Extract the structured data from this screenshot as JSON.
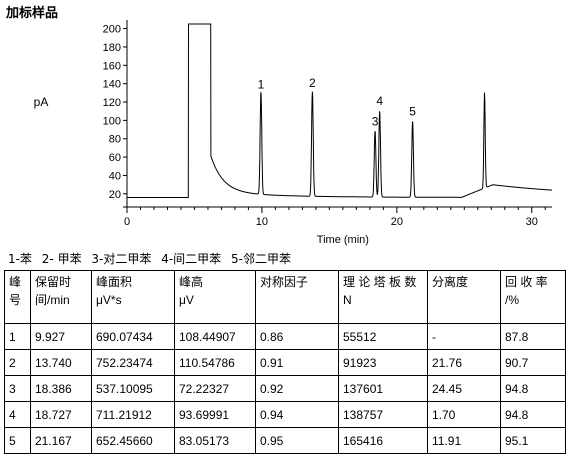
{
  "title": "加标样品",
  "chart_data": {
    "type": "line",
    "ylabel": "pA",
    "xlabel": "Time (min)",
    "xlim": [
      0,
      31.5
    ],
    "ylim": [
      10,
      205
    ],
    "xticks": [
      0,
      10,
      20,
      30
    ],
    "yticks": [
      20,
      40,
      60,
      80,
      100,
      120,
      140,
      160,
      180,
      200
    ],
    "baseline": 16,
    "solvent_peak": {
      "start": 4.55,
      "end": 6.2,
      "top": 205
    },
    "peaks": [
      {
        "label": "1",
        "rt": 9.927,
        "height": 128
      },
      {
        "label": "2",
        "rt": 13.74,
        "height": 130
      },
      {
        "label": "3",
        "rt": 18.386,
        "height": 88
      },
      {
        "label": "4",
        "rt": 18.727,
        "height": 110
      },
      {
        "label": "5",
        "rt": 21.167,
        "height": 99
      }
    ],
    "extra_peaks": [
      {
        "rt": 26.5,
        "height": 120
      }
    ]
  },
  "legend": [
    "1-苯",
    "2- 甲苯",
    "3-对二甲苯",
    "4-间二甲苯",
    "5-邻二甲苯"
  ],
  "table": {
    "headers": [
      [
        "峰",
        "号"
      ],
      [
        "保留时",
        "间/min"
      ],
      [
        "峰面积",
        "μV*s"
      ],
      [
        "峰高",
        "μV"
      ],
      [
        "对称因子"
      ],
      [
        "理 论 塔 板 数",
        "N"
      ],
      [
        "分离度"
      ],
      [
        "回 收 率",
        "/%"
      ]
    ],
    "rows": [
      [
        "1",
        "9.927",
        "690.07434",
        "108.44907",
        "0.86",
        "55512",
        "-",
        "87.8"
      ],
      [
        "2",
        "13.740",
        "752.23474",
        "110.54786",
        "0.91",
        "91923",
        "21.76",
        "90.7"
      ],
      [
        "3",
        "18.386",
        "537.10095",
        "72.22327",
        "0.92",
        "137601",
        "24.45",
        "94.8"
      ],
      [
        "4",
        "18.727",
        "711.21912",
        "93.69991",
        "0.94",
        "138757",
        "1.70",
        "94.8"
      ],
      [
        "5",
        "21.167",
        "652.45660",
        "83.05173",
        "0.95",
        "165416",
        "11.91",
        "95.1"
      ]
    ]
  }
}
